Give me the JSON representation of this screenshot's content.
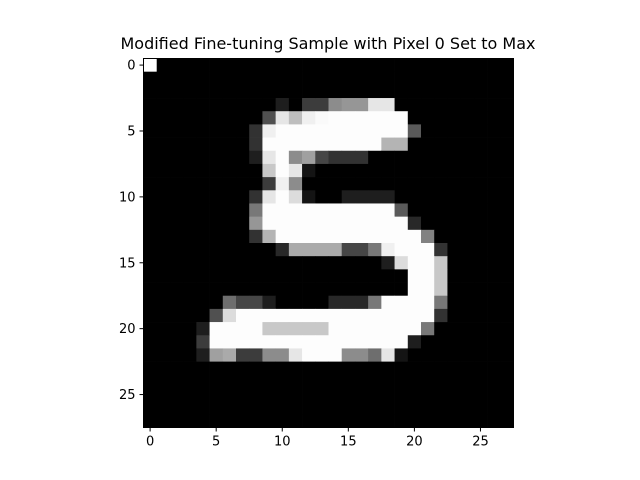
{
  "chart_data": {
    "type": "heatmap",
    "title": "Modified Fine-tuning Sample with Pixel 0 Set to Max",
    "xlabel": "",
    "ylabel": "",
    "colormap": "gray",
    "value_range": [
      0,
      255
    ],
    "xlim": [
      -0.5,
      27.5
    ],
    "ylim": [
      27.5,
      -0.5
    ],
    "x_ticks": [
      0,
      5,
      10,
      15,
      20,
      25
    ],
    "y_ticks": [
      0,
      5,
      10,
      15,
      20,
      25
    ],
    "x_tick_labels": [
      "0",
      "5",
      "10",
      "15",
      "20",
      "25"
    ],
    "y_tick_labels": [
      "0",
      "5",
      "10",
      "15",
      "20",
      "25"
    ],
    "grid": false,
    "legend": "none",
    "rows": 28,
    "cols": 28,
    "pixels": [
      [
        255,
        0,
        0,
        0,
        0,
        0,
        0,
        0,
        0,
        0,
        0,
        0,
        0,
        0,
        0,
        0,
        0,
        0,
        0,
        0,
        0,
        0,
        0,
        0,
        0,
        0,
        0,
        0
      ],
      [
        0,
        0,
        0,
        0,
        0,
        0,
        0,
        0,
        0,
        0,
        0,
        0,
        0,
        0,
        0,
        0,
        0,
        0,
        0,
        0,
        0,
        0,
        0,
        0,
        0,
        0,
        0,
        0
      ],
      [
        0,
        0,
        0,
        0,
        0,
        0,
        0,
        0,
        0,
        0,
        0,
        0,
        0,
        0,
        0,
        0,
        0,
        0,
        0,
        0,
        0,
        0,
        0,
        0,
        0,
        0,
        0,
        0
      ],
      [
        0,
        0,
        0,
        0,
        0,
        0,
        0,
        0,
        0,
        0,
        30,
        0,
        60,
        60,
        140,
        150,
        150,
        230,
        230,
        0,
        0,
        0,
        0,
        0,
        0,
        0,
        0,
        0
      ],
      [
        0,
        0,
        0,
        0,
        0,
        0,
        0,
        0,
        0,
        80,
        230,
        190,
        240,
        250,
        253,
        253,
        253,
        253,
        253,
        253,
        0,
        0,
        0,
        0,
        0,
        0,
        0,
        0
      ],
      [
        0,
        0,
        0,
        0,
        0,
        0,
        0,
        0,
        50,
        240,
        253,
        253,
        253,
        253,
        253,
        253,
        253,
        253,
        253,
        253,
        90,
        0,
        0,
        0,
        0,
        0,
        0,
        0
      ],
      [
        0,
        0,
        0,
        0,
        0,
        0,
        0,
        0,
        50,
        253,
        253,
        253,
        253,
        253,
        253,
        253,
        253,
        253,
        180,
        180,
        0,
        0,
        0,
        0,
        0,
        0,
        0,
        0
      ],
      [
        0,
        0,
        0,
        0,
        0,
        0,
        0,
        0,
        30,
        230,
        253,
        140,
        160,
        70,
        50,
        50,
        50,
        0,
        0,
        0,
        0,
        0,
        0,
        0,
        0,
        0,
        0,
        0
      ],
      [
        0,
        0,
        0,
        0,
        0,
        0,
        0,
        0,
        0,
        200,
        253,
        230,
        20,
        0,
        0,
        0,
        0,
        0,
        0,
        0,
        0,
        0,
        0,
        0,
        0,
        0,
        0,
        0
      ],
      [
        0,
        0,
        0,
        0,
        0,
        0,
        0,
        0,
        0,
        60,
        240,
        140,
        0,
        0,
        0,
        0,
        0,
        0,
        0,
        0,
        0,
        0,
        0,
        0,
        0,
        0,
        0,
        0
      ],
      [
        0,
        0,
        0,
        0,
        0,
        0,
        0,
        0,
        50,
        230,
        253,
        220,
        20,
        0,
        0,
        30,
        30,
        30,
        30,
        0,
        0,
        0,
        0,
        0,
        0,
        0,
        0,
        0
      ],
      [
        0,
        0,
        0,
        0,
        0,
        0,
        0,
        0,
        120,
        253,
        253,
        253,
        253,
        253,
        253,
        253,
        253,
        253,
        253,
        90,
        0,
        0,
        0,
        0,
        0,
        0,
        0,
        0
      ],
      [
        0,
        0,
        0,
        0,
        0,
        0,
        0,
        0,
        150,
        253,
        253,
        253,
        253,
        253,
        253,
        253,
        253,
        253,
        253,
        253,
        40,
        0,
        0,
        0,
        0,
        0,
        0,
        0
      ],
      [
        0,
        0,
        0,
        0,
        0,
        0,
        0,
        0,
        50,
        180,
        253,
        253,
        253,
        253,
        253,
        253,
        253,
        253,
        253,
        253,
        253,
        130,
        0,
        0,
        0,
        0,
        0,
        0
      ],
      [
        0,
        0,
        0,
        0,
        0,
        0,
        0,
        0,
        0,
        0,
        40,
        170,
        170,
        170,
        170,
        70,
        70,
        120,
        240,
        253,
        253,
        253,
        50,
        0,
        0,
        0,
        0,
        0
      ],
      [
        0,
        0,
        0,
        0,
        0,
        0,
        0,
        0,
        0,
        0,
        0,
        0,
        0,
        0,
        0,
        0,
        0,
        0,
        30,
        220,
        253,
        253,
        200,
        0,
        0,
        0,
        0,
        0
      ],
      [
        0,
        0,
        0,
        0,
        0,
        0,
        0,
        0,
        0,
        0,
        0,
        0,
        0,
        0,
        0,
        0,
        0,
        0,
        0,
        0,
        253,
        253,
        200,
        0,
        0,
        0,
        0,
        0
      ],
      [
        0,
        0,
        0,
        0,
        0,
        0,
        0,
        0,
        0,
        0,
        0,
        0,
        0,
        0,
        0,
        0,
        0,
        0,
        0,
        0,
        253,
        253,
        200,
        0,
        0,
        0,
        0,
        0
      ],
      [
        0,
        0,
        0,
        0,
        0,
        0,
        110,
        70,
        70,
        30,
        0,
        0,
        0,
        0,
        40,
        40,
        40,
        120,
        253,
        253,
        253,
        253,
        120,
        0,
        0,
        0,
        0,
        0
      ],
      [
        0,
        0,
        0,
        0,
        0,
        80,
        220,
        253,
        253,
        253,
        253,
        253,
        253,
        253,
        253,
        253,
        253,
        253,
        253,
        253,
        253,
        253,
        50,
        0,
        0,
        0,
        0,
        0
      ],
      [
        0,
        0,
        0,
        0,
        30,
        253,
        253,
        253,
        253,
        200,
        200,
        200,
        200,
        200,
        253,
        253,
        253,
        253,
        253,
        253,
        253,
        120,
        0,
        0,
        0,
        0,
        0,
        0
      ],
      [
        0,
        0,
        0,
        0,
        60,
        253,
        253,
        253,
        253,
        253,
        253,
        253,
        253,
        253,
        253,
        253,
        253,
        253,
        253,
        253,
        30,
        0,
        0,
        0,
        0,
        0,
        0,
        0
      ],
      [
        0,
        0,
        0,
        0,
        30,
        160,
        170,
        60,
        60,
        140,
        140,
        230,
        253,
        253,
        253,
        140,
        140,
        110,
        230,
        20,
        0,
        0,
        0,
        0,
        0,
        0,
        0,
        0
      ],
      [
        0,
        0,
        0,
        0,
        0,
        0,
        0,
        0,
        0,
        0,
        0,
        0,
        0,
        0,
        0,
        0,
        0,
        0,
        0,
        0,
        0,
        0,
        0,
        0,
        0,
        0,
        0,
        0
      ],
      [
        0,
        0,
        0,
        0,
        0,
        0,
        0,
        0,
        0,
        0,
        0,
        0,
        0,
        0,
        0,
        0,
        0,
        0,
        0,
        0,
        0,
        0,
        0,
        0,
        0,
        0,
        0,
        0
      ],
      [
        0,
        0,
        0,
        0,
        0,
        0,
        0,
        0,
        0,
        0,
        0,
        0,
        0,
        0,
        0,
        0,
        0,
        0,
        0,
        0,
        0,
        0,
        0,
        0,
        0,
        0,
        0,
        0
      ],
      [
        0,
        0,
        0,
        0,
        0,
        0,
        0,
        0,
        0,
        0,
        0,
        0,
        0,
        0,
        0,
        0,
        0,
        0,
        0,
        0,
        0,
        0,
        0,
        0,
        0,
        0,
        0,
        0
      ],
      [
        0,
        0,
        0,
        0,
        0,
        0,
        0,
        0,
        0,
        0,
        0,
        0,
        0,
        0,
        0,
        0,
        0,
        0,
        0,
        0,
        0,
        0,
        0,
        0,
        0,
        0,
        0,
        0
      ]
    ]
  }
}
